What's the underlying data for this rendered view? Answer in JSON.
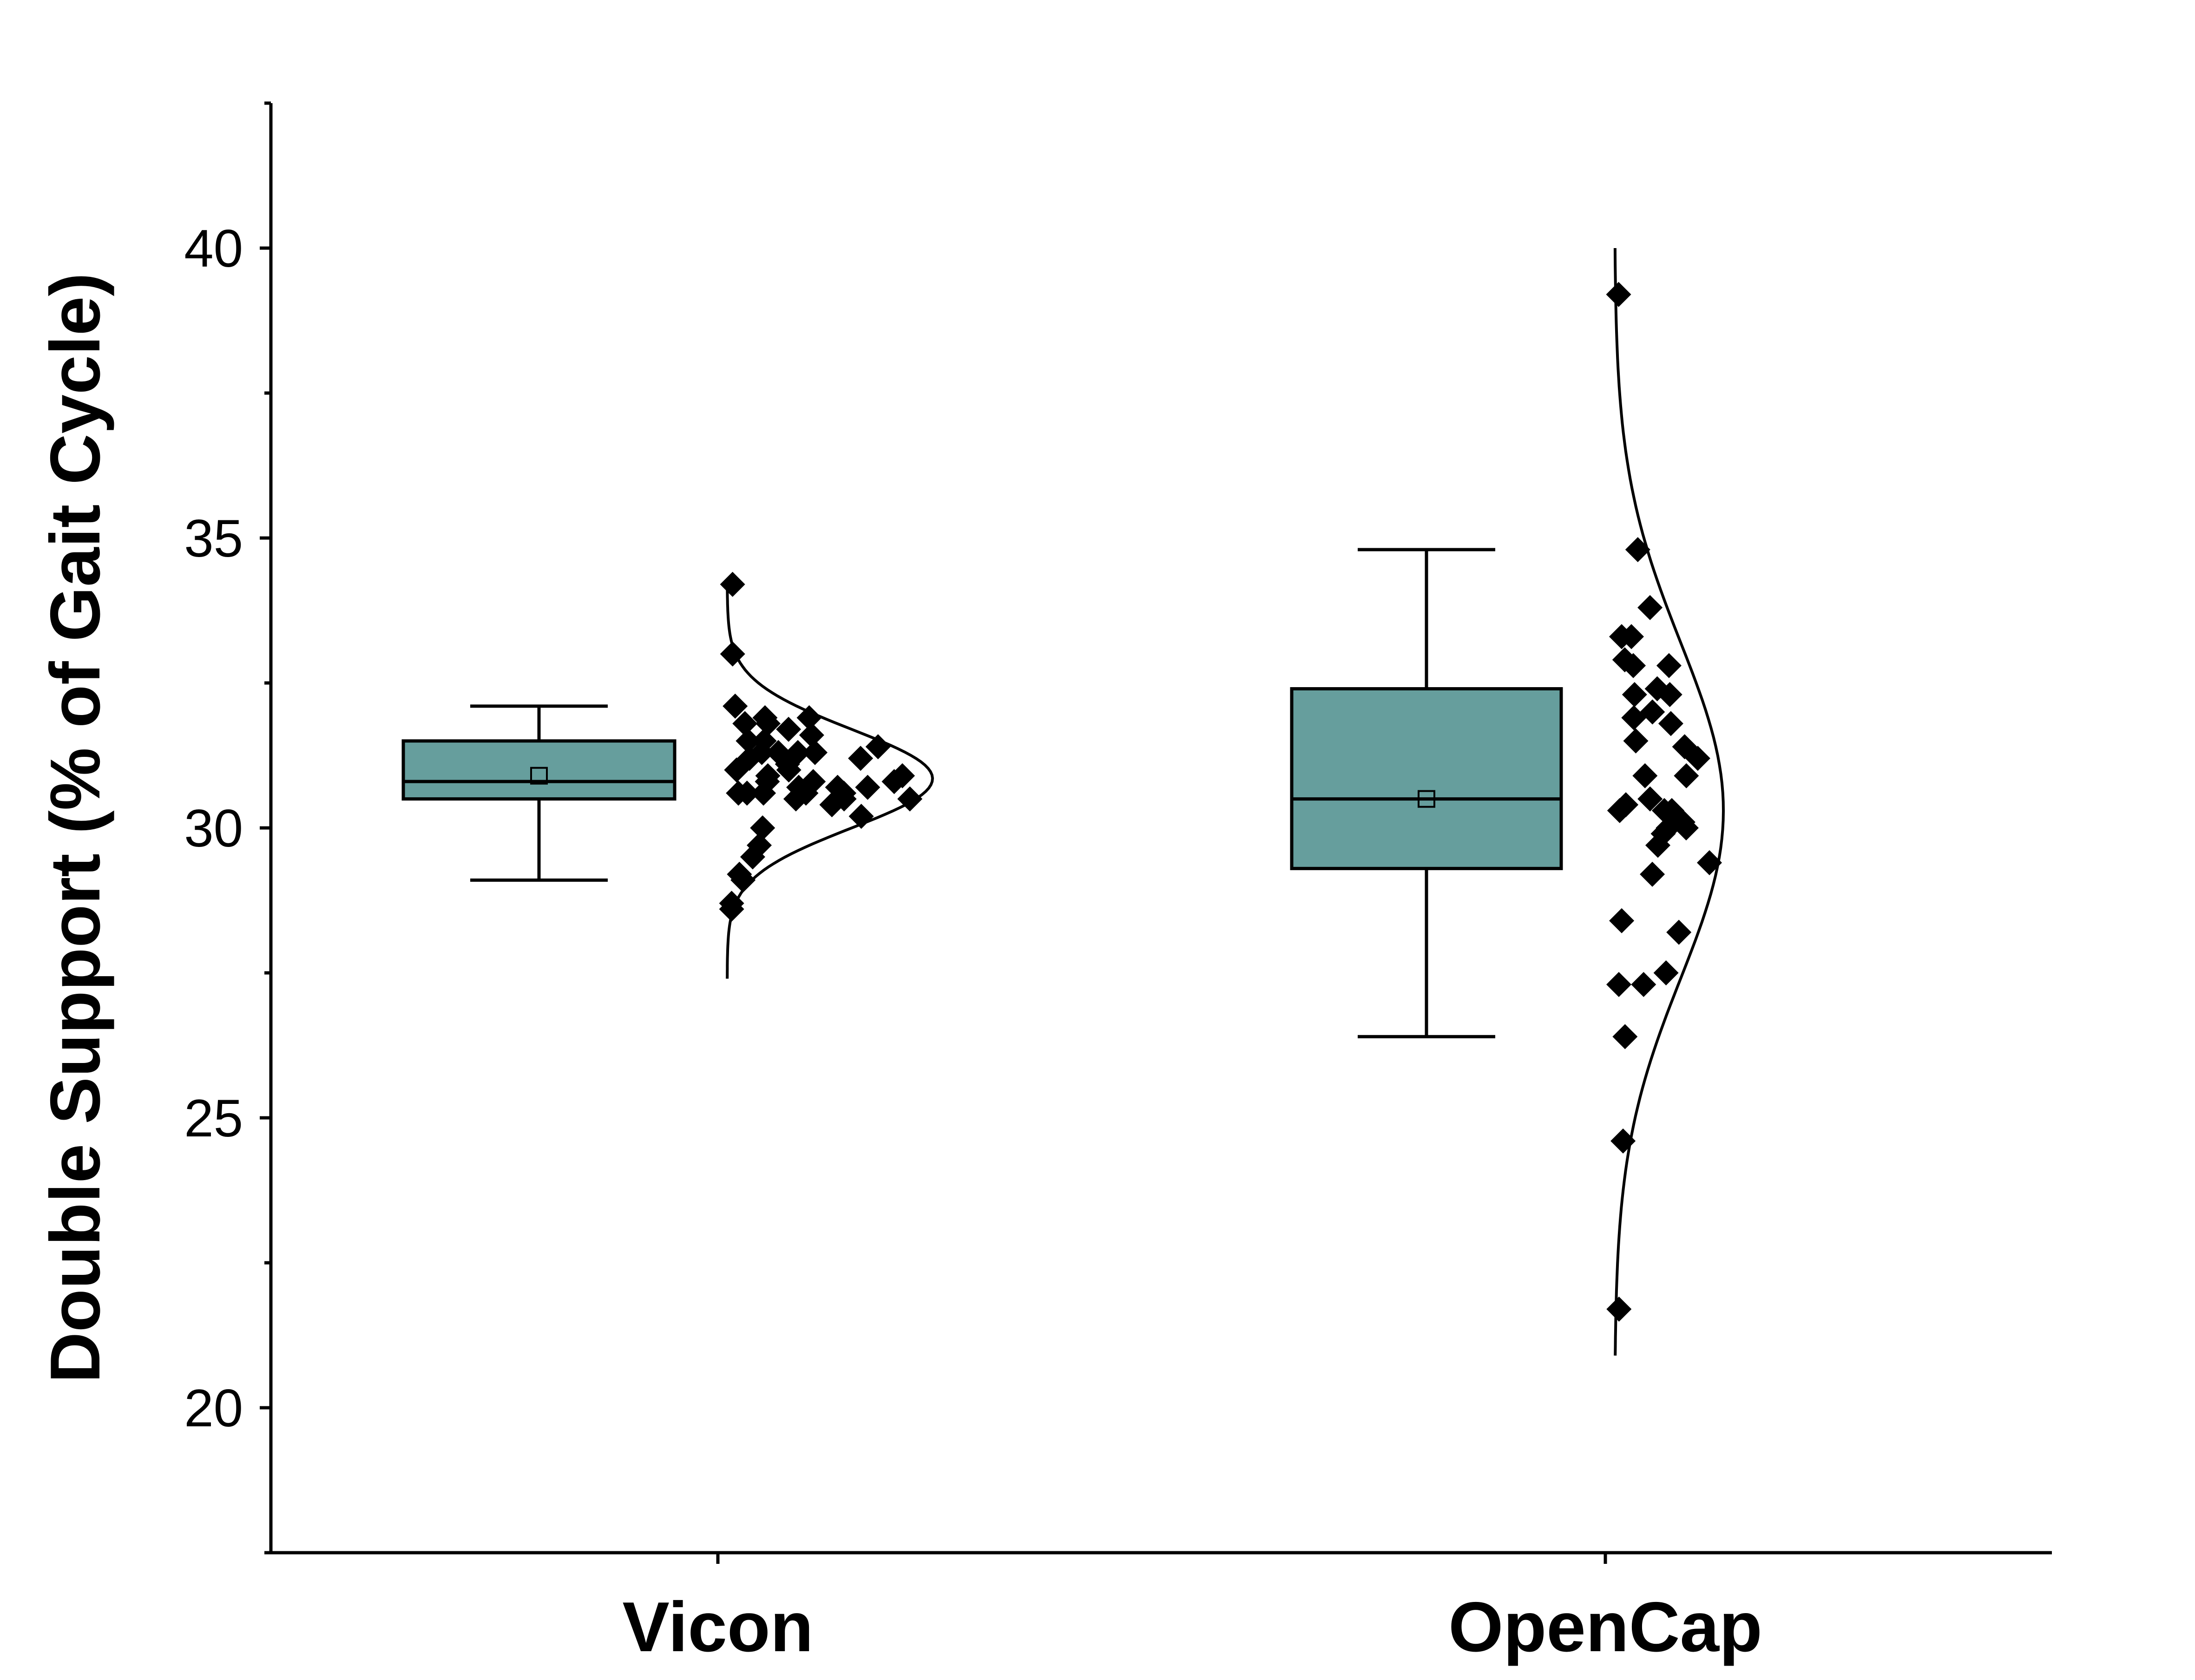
{
  "chart_data": {
    "type": "box",
    "ylabel": "Double Support (% of Gait Cycle)",
    "xlabel": "",
    "ylim": [
      17.5,
      42.5
    ],
    "yticks": [
      20,
      25,
      30,
      35,
      40
    ],
    "ytick_labels": [
      "20",
      "25",
      "30",
      "35",
      "40"
    ],
    "categories": [
      "Vicon",
      "OpenCap"
    ],
    "grid": false,
    "legend": "none",
    "colors": {
      "box_fill": "#669E9D",
      "stroke": "#000000",
      "points": "#000000"
    },
    "series": [
      {
        "category": "Vicon",
        "whisker_low": 29.1,
        "q1": 30.5,
        "median": 30.8,
        "mean": 30.9,
        "q3": 31.5,
        "whisker_high": 32.1,
        "distribution": {
          "mean": 30.85,
          "sd": 0.85,
          "range": [
            27.4,
            34.2
          ]
        },
        "points": [
          34.2,
          33.0,
          32.1,
          31.9,
          31.9,
          31.8,
          31.8,
          31.7,
          31.6,
          31.5,
          31.5,
          31.4,
          31.3,
          31.3,
          31.3,
          31.3,
          31.2,
          31.2,
          31.1,
          31.0,
          31.0,
          30.9,
          30.9,
          30.8,
          30.8,
          30.8,
          30.7,
          30.7,
          30.7,
          30.6,
          30.6,
          30.6,
          30.6,
          30.6,
          30.5,
          30.5,
          30.5,
          30.4,
          30.2,
          30.0,
          29.7,
          29.5,
          29.2,
          29.1,
          28.7,
          28.6
        ]
      },
      {
        "category": "OpenCap",
        "whisker_low": 26.4,
        "q1": 29.3,
        "median": 30.5,
        "mean": 30.5,
        "q3": 32.4,
        "whisker_high": 34.8,
        "distribution": {
          "mean": 30.3,
          "sd": 2.9,
          "range": [
            20.9,
            40.0
          ]
        },
        "points": [
          39.2,
          34.8,
          33.8,
          33.3,
          33.3,
          32.9,
          32.8,
          32.8,
          32.4,
          32.3,
          32.3,
          32.0,
          31.9,
          31.8,
          31.5,
          31.4,
          31.2,
          30.9,
          30.9,
          30.5,
          30.4,
          30.3,
          30.3,
          30.3,
          30.1,
          30.0,
          30.0,
          29.9,
          29.7,
          29.4,
          29.2,
          28.4,
          28.2,
          27.5,
          27.3,
          27.3,
          26.4,
          24.6,
          21.7
        ]
      }
    ]
  }
}
